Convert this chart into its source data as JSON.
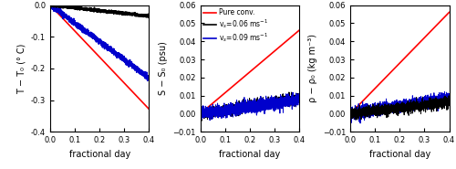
{
  "xlim": [
    0,
    0.4
  ],
  "xlabel": "fractional day",
  "xticks": [
    0,
    0.1,
    0.2,
    0.3,
    0.4
  ],
  "panel1": {
    "ylabel": "T − T₀ (° C)",
    "ylim": [
      -0.4,
      0.0
    ],
    "yticks": [
      -0.4,
      -0.3,
      -0.2,
      -0.1,
      0.0
    ],
    "lines": [
      {
        "slope": -0.82,
        "color": "#FF0000",
        "lw": 1.2,
        "noise": 0.0
      },
      {
        "slope": -0.575,
        "color": "#0000CC",
        "lw": 1.2,
        "noise": 0.004
      },
      {
        "slope": -0.087,
        "color": "#000000",
        "lw": 1.2,
        "noise": 0.002
      }
    ]
  },
  "panel2": {
    "ylabel": "S − S₀ (psu)",
    "ylim": [
      -0.01,
      0.06
    ],
    "yticks": [
      -0.01,
      0.0,
      0.01,
      0.02,
      0.03,
      0.04,
      0.05,
      0.06
    ],
    "legend": [
      {
        "label": "Pure conv.",
        "color": "#FF0000"
      },
      {
        "label": "v$_s$=0.06 ms$^{-1}$",
        "color": "#000000"
      },
      {
        "label": "v$_s$=0.09 ms$^{-1}$",
        "color": "#0000CC"
      }
    ],
    "lines": [
      {
        "slope": 0.115,
        "color": "#FF0000",
        "lw": 1.2,
        "noise": 0.0
      },
      {
        "slope": 0.021,
        "color": "#000000",
        "lw": 0.7,
        "noise": 0.0014
      },
      {
        "slope": 0.019,
        "color": "#0000CC",
        "lw": 0.7,
        "noise": 0.0016
      }
    ]
  },
  "panel3": {
    "ylabel": "ρ − ρ₀ (kg m⁻³)",
    "ylim": [
      -0.01,
      0.06
    ],
    "yticks": [
      -0.01,
      0.0,
      0.01,
      0.02,
      0.03,
      0.04,
      0.05,
      0.06
    ],
    "lines": [
      {
        "slope": 0.14,
        "color": "#FF0000",
        "lw": 1.2,
        "noise": 0.0
      },
      {
        "slope": 0.022,
        "color": "#0000CC",
        "lw": 0.7,
        "noise": 0.0016
      },
      {
        "slope": 0.016,
        "color": "#000000",
        "lw": 0.7,
        "noise": 0.0014
      }
    ]
  }
}
